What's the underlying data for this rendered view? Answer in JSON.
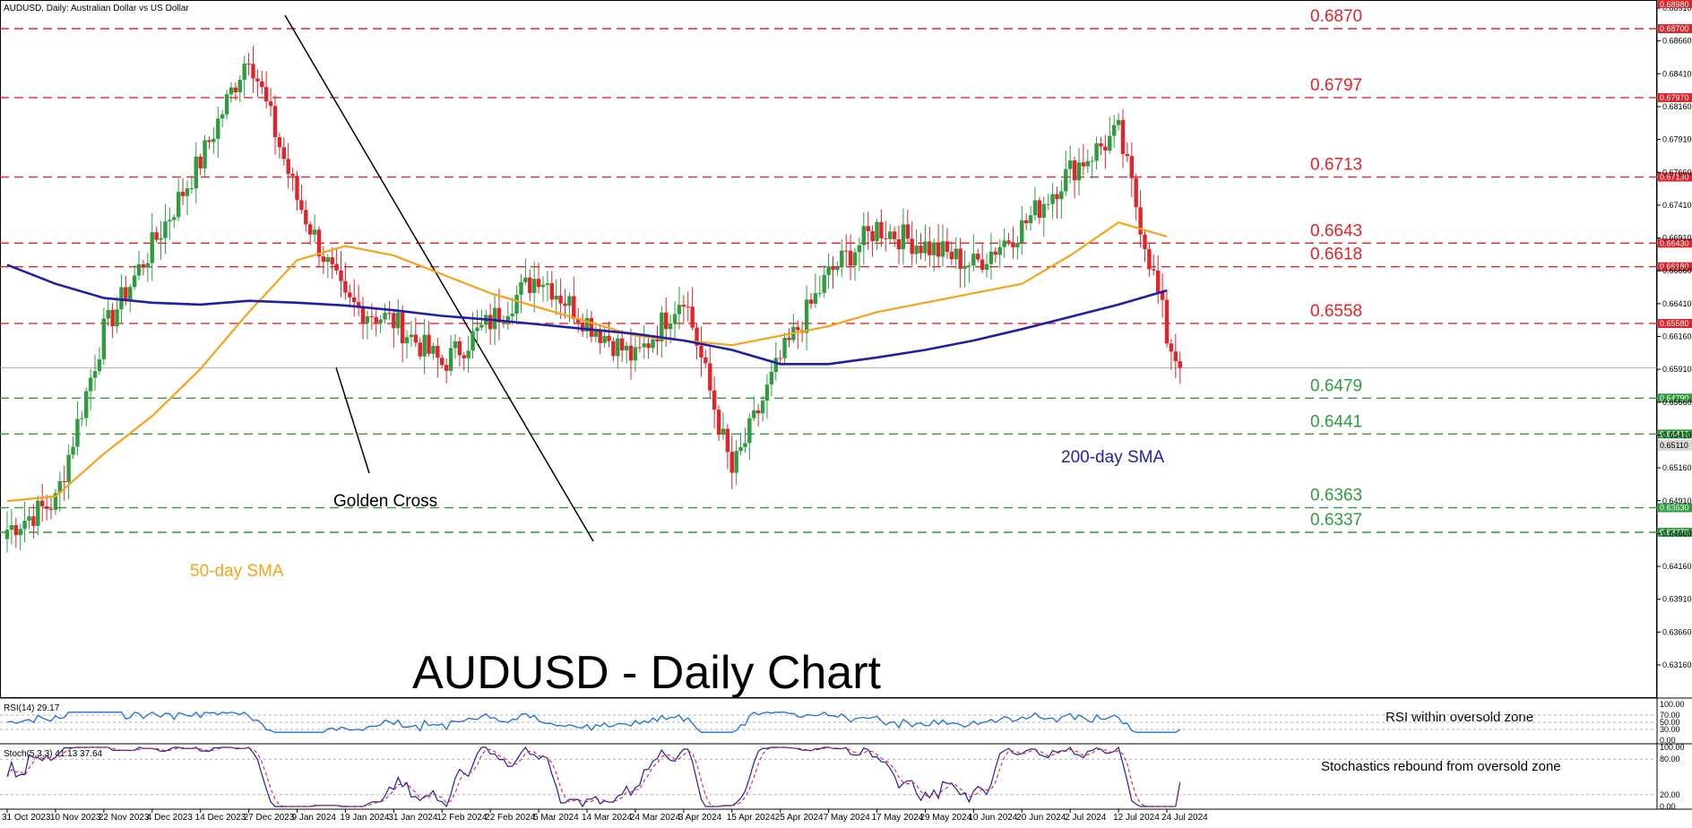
{
  "window": {
    "symbol_title": "AUDUSD, Daily:  Australian Dollar vs US Dollar"
  },
  "main_title": "AUDUSD - Daily Chart",
  "colors": {
    "bull": "#2e9c3f",
    "bear": "#e0242a",
    "sma50": "#f5a31a",
    "sma200": "#1f1fa8",
    "resistance": "#e0242a",
    "support": "#2e9c3f",
    "rsi": "#1e6fd9",
    "stoch_main": "#1f1fa8",
    "stoch_signal": "#e0242a"
  },
  "annotations": {
    "golden_cross": "Golden Cross",
    "sma50_label": "50-day SMA",
    "sma200_label": "200-day SMA",
    "rsi_note": "RSI within oversold zone",
    "stoch_note": "Stochastics rebound from oversold zone"
  },
  "price_axis": {
    "ticks": [
      "0.68910",
      "0.68660",
      "0.68410",
      "0.68160",
      "0.67910",
      "0.67660",
      "0.67410",
      "0.66910",
      "0.66660",
      "0.66410",
      "0.66160",
      "0.65910",
      "0.65660",
      "0.65410",
      "0.65160",
      "0.64910",
      "0.64660",
      "0.64160",
      "0.63910",
      "0.63660",
      "0.63160"
    ],
    "top_clip": "0.68980",
    "current_price": "0.65110"
  },
  "levels": [
    {
      "value": 0.687,
      "label": "0.6870",
      "tag": "0.68700",
      "type": "resistance"
    },
    {
      "value": 0.6797,
      "label": "0.6797",
      "tag": "0.67970",
      "type": "resistance"
    },
    {
      "value": 0.6713,
      "label": "0.6713",
      "tag": "0.67130",
      "type": "resistance"
    },
    {
      "value": 0.6643,
      "label": "0.6643",
      "tag": "0.66430",
      "type": "resistance"
    },
    {
      "value": 0.6618,
      "label": "0.6618",
      "tag": "0.66180",
      "type": "resistance"
    },
    {
      "value": 0.6558,
      "label": "0.6558",
      "tag": "0.65580",
      "type": "resistance"
    },
    {
      "value": 0.6479,
      "label": "0.6479",
      "tag": "0.64790",
      "type": "support"
    },
    {
      "value": 0.6441,
      "label": "0.6441",
      "tag": "0.64410",
      "type": "support"
    },
    {
      "value": 0.6363,
      "label": "0.6363",
      "tag": "0.63630",
      "type": "support"
    },
    {
      "value": 0.6337,
      "label": "0.6337",
      "tag": "0.63370",
      "type": "support"
    }
  ],
  "rsi_panel": {
    "header": "RSI(14) 29.17",
    "ticks": [
      "100.00",
      "70.00",
      "50.00",
      "30.00",
      "0.00"
    ]
  },
  "stoch_panel": {
    "header": "Stoch(5,3,3) 41.13 37.64",
    "ticks": [
      "100.00",
      "80.00",
      "20.00",
      "0.00"
    ]
  },
  "time_axis": {
    "labels": [
      "31 Oct 2023",
      "10 Nov 2023",
      "22 Nov 2023",
      "4 Dec 2023",
      "14 Dec 2023",
      "27 Dec 2023",
      "9 Jan 2024",
      "19 Jan 2024",
      "31 Jan 2024",
      "12 Feb 2024",
      "22 Feb 2024",
      "5 Mar 2024",
      "14 Mar 2024",
      "24 Mar 2024",
      "3 Apr 2024",
      "15 Apr 2024",
      "25 Apr 2024",
      "7 May 2024",
      "17 May 2024",
      "29 May 2024",
      "10 Jun 2024",
      "20 Jun 2024",
      "2 Jul 2024",
      "12 Jul 2024",
      "24 Jul 2024"
    ]
  },
  "chart_data": {
    "type": "candlestick",
    "symbol": "AUDUSD",
    "timeframe": "Daily",
    "title": "AUDUSD - Daily Chart",
    "y_range": [
      0.63,
      0.6898
    ],
    "grid": false,
    "dates": [
      "31 Oct 2023",
      "10 Nov 2023",
      "22 Nov 2023",
      "4 Dec 2023",
      "14 Dec 2023",
      "27 Dec 2023",
      "9 Jan 2024",
      "19 Jan 2024",
      "31 Jan 2024",
      "12 Feb 2024",
      "22 Feb 2024",
      "5 Mar 2024",
      "14 Mar 2024",
      "24 Mar 2024",
      "3 Apr 2024",
      "15 Apr 2024",
      "25 Apr 2024",
      "7 May 2024",
      "17 May 2024",
      "29 May 2024",
      "10 Jun 2024",
      "20 Jun 2024",
      "2 Jul 2024",
      "12 Jul 2024",
      "24 Jul 2024"
    ],
    "close_anchors": [
      {
        "date": "31 Oct 2023",
        "close": 0.634
      },
      {
        "date": "10 Nov 2023",
        "close": 0.637
      },
      {
        "date": "22 Nov 2023",
        "close": 0.655
      },
      {
        "date": "4 Dec 2023",
        "close": 0.664
      },
      {
        "date": "14 Dec 2023",
        "close": 0.673
      },
      {
        "date": "27 Dec 2023",
        "close": 0.6845
      },
      {
        "date": "9 Jan 2024",
        "close": 0.669
      },
      {
        "date": "19 Jan 2024",
        "close": 0.658
      },
      {
        "date": "31 Jan 2024",
        "close": 0.656
      },
      {
        "date": "12 Feb 2024",
        "close": 0.6515
      },
      {
        "date": "22 Feb 2024",
        "close": 0.656
      },
      {
        "date": "5 Mar 2024",
        "close": 0.661
      },
      {
        "date": "14 Mar 2024",
        "close": 0.656
      },
      {
        "date": "24 Mar 2024",
        "close": 0.652
      },
      {
        "date": "3 Apr 2024",
        "close": 0.659
      },
      {
        "date": "15 Apr 2024",
        "close": 0.64
      },
      {
        "date": "25 Apr 2024",
        "close": 0.652
      },
      {
        "date": "7 May 2024",
        "close": 0.661
      },
      {
        "date": "17 May 2024",
        "close": 0.666
      },
      {
        "date": "29 May 2024",
        "close": 0.664
      },
      {
        "date": "10 Jun 2024",
        "close": 0.662
      },
      {
        "date": "20 Jun 2024",
        "close": 0.666
      },
      {
        "date": "2 Jul 2024",
        "close": 0.672
      },
      {
        "date": "12 Jul 2024",
        "close": 0.676
      },
      {
        "date": "24 Jul 2024",
        "close": 0.655
      }
    ],
    "last_close": 0.6511,
    "series": [
      {
        "name": "50-day SMA",
        "values": [
          0.637,
          0.6375,
          0.642,
          0.646,
          0.651,
          0.657,
          0.6625,
          0.664,
          0.663,
          0.661,
          0.659,
          0.6575,
          0.656,
          0.6545,
          0.654,
          0.6535,
          0.6545,
          0.6555,
          0.657,
          0.658,
          0.659,
          0.66,
          0.663,
          0.6665,
          0.665
        ]
      },
      {
        "name": "200-day SMA",
        "values": [
          0.662,
          0.66,
          0.6585,
          0.658,
          0.6578,
          0.6582,
          0.658,
          0.6577,
          0.6572,
          0.6566,
          0.6562,
          0.6557,
          0.6552,
          0.6547,
          0.654,
          0.653,
          0.6515,
          0.6515,
          0.6522,
          0.653,
          0.654,
          0.6552,
          0.6565,
          0.6578,
          0.6593
        ]
      }
    ]
  }
}
